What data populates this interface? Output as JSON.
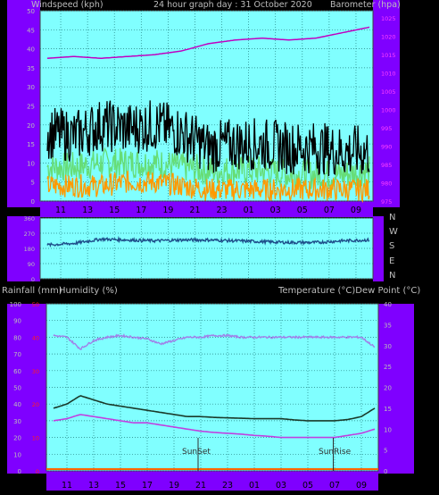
{
  "header": {
    "windspeed_label": "Windspeed (kph)",
    "title": "24 hour graph day : 31 October 2020",
    "barometer_label": "Barometer (hpa)"
  },
  "middle_header": {
    "rainfall_label": "Rainfall (mm)",
    "humidity_label": "Humidity (%)",
    "temperature_label": "Temperature (°C)Dew Point (°C)"
  },
  "wind_dir_labels": [
    "N",
    "W",
    "S",
    "E",
    "N"
  ],
  "sun": {
    "sunset_label": "SunSet",
    "sunrise_label": "SunRise"
  },
  "chart_data": [
    {
      "type": "line",
      "title": "24 hour graph day : 31 October 2020",
      "x_ticks": [
        "11",
        "13",
        "15",
        "17",
        "19",
        "21",
        "23",
        "01",
        "03",
        "05",
        "07",
        "09"
      ],
      "left_axis": {
        "label": "Windspeed (kph)",
        "ticks": [
          0,
          5,
          10,
          15,
          20,
          25,
          30,
          35,
          40,
          45,
          50
        ],
        "ylim": [
          0,
          50
        ]
      },
      "right_axis": {
        "label": "Barometer (hpa)",
        "ticks": [
          975,
          980,
          985,
          990,
          995,
          1000,
          1005,
          1010,
          1015,
          1020,
          1025
        ],
        "ylim": [
          975,
          1027
        ]
      },
      "series": [
        {
          "axis": "right",
          "color": "#c000c0",
          "x": [
            0,
            2,
            4,
            6,
            8,
            10,
            12,
            14,
            16,
            18,
            20,
            22,
            24
          ],
          "values": [
            1014,
            1014.5,
            1014,
            1014.5,
            1015,
            1016,
            1018,
            1019,
            1019.5,
            1019,
            1019.5,
            1021,
            1022.5
          ]
        },
        {
          "axis": "left",
          "color": "#000000",
          "x": [
            0,
            2,
            4,
            6,
            8,
            10,
            12,
            14,
            16,
            18,
            20,
            22,
            24
          ],
          "values": [
            18,
            17,
            20,
            19,
            20,
            18,
            14,
            15,
            15,
            14,
            14,
            13,
            13
          ]
        },
        {
          "axis": "left",
          "color": "#66dd77",
          "x": [
            0,
            2,
            4,
            6,
            8,
            10,
            12,
            14,
            16,
            18,
            20,
            22,
            24
          ],
          "values": [
            9,
            9,
            10,
            10,
            10,
            9,
            8,
            8,
            8,
            7,
            7,
            7,
            8
          ]
        },
        {
          "axis": "left",
          "color": "#ff9900",
          "x": [
            0,
            2,
            4,
            6,
            8,
            10,
            12,
            14,
            16,
            18,
            20,
            22,
            24
          ],
          "values": [
            4,
            4,
            4,
            5,
            5,
            4,
            3,
            3,
            3,
            3,
            3,
            3,
            3
          ]
        }
      ]
    },
    {
      "type": "line",
      "ylim": [
        0,
        360
      ],
      "y_ticks": [
        0,
        90,
        180,
        270,
        360
      ],
      "series": [
        {
          "name": "",
          "color": "#1e4e8a",
          "x": [
            0,
            2,
            4,
            6,
            8,
            10,
            12,
            14,
            16,
            18,
            20,
            22,
            24
          ],
          "values": [
            200,
            210,
            235,
            230,
            225,
            230,
            230,
            225,
            220,
            215,
            215,
            225,
            230
          ]
        }
      ]
    },
    {
      "type": "line",
      "x_ticks": [
        "11",
        "13",
        "15",
        "17",
        "19",
        "21",
        "23",
        "01",
        "03",
        "05",
        "07",
        "09"
      ],
      "humidity_axis": {
        "label": "Humidity (%)",
        "ticks": [
          0,
          10,
          20,
          30,
          40,
          50,
          60,
          70,
          80,
          90,
          100
        ],
        "ylim": [
          0,
          100
        ]
      },
      "rainfall_axis": {
        "label": "Rainfall (mm)",
        "ticks": [
          0,
          10,
          20,
          30,
          40,
          50
        ],
        "ylim": [
          0,
          50
        ]
      },
      "temperature_axis": {
        "label": "Temperature (°C)Dew Point (°C)",
        "ticks": [
          0,
          5,
          10,
          15,
          20,
          25,
          30,
          35,
          40
        ],
        "ylim": [
          0,
          40
        ]
      },
      "series": [
        {
          "axis": "humidity",
          "color": "#a080e8",
          "x": [
            0,
            1,
            2,
            3,
            4,
            5,
            6,
            7,
            8,
            9,
            10,
            11,
            12,
            13,
            14,
            15,
            16,
            17,
            18,
            19,
            20,
            21,
            22,
            23,
            24
          ],
          "values": [
            81,
            80,
            73,
            78,
            80,
            81,
            80,
            79,
            76,
            78,
            80,
            80,
            81,
            81,
            80,
            80,
            80,
            80,
            80,
            80,
            80,
            80,
            80,
            80,
            74
          ]
        },
        {
          "axis": "temperature",
          "color": "#1a3a2a",
          "x": [
            0,
            1,
            2,
            3,
            4,
            5,
            6,
            7,
            8,
            9,
            10,
            11,
            12,
            13,
            14,
            15,
            16,
            17,
            18,
            19,
            20,
            21,
            22,
            23,
            24
          ],
          "values": [
            15,
            16,
            18,
            17,
            16,
            15.5,
            15,
            14.5,
            14,
            13.5,
            13,
            13,
            12.8,
            12.7,
            12.6,
            12.5,
            12.5,
            12.5,
            12.2,
            12,
            12,
            12,
            12.3,
            13,
            15
          ]
        },
        {
          "axis": "temperature",
          "color": "#c040e0",
          "x": [
            0,
            1,
            2,
            3,
            4,
            5,
            6,
            7,
            8,
            9,
            10,
            11,
            12,
            13,
            14,
            15,
            16,
            17,
            18,
            19,
            20,
            21,
            22,
            23,
            24
          ],
          "values": [
            12,
            12.5,
            13.5,
            13,
            12.5,
            12,
            11.5,
            11.5,
            11,
            10.5,
            10,
            9.5,
            9.2,
            9,
            8.8,
            8.5,
            8.3,
            8,
            8,
            8,
            8,
            8,
            8.5,
            9,
            10
          ]
        },
        {
          "axis": "rainfall",
          "color": "#ff6600",
          "x": [
            0,
            24
          ],
          "values": [
            0,
            0
          ]
        }
      ]
    }
  ]
}
